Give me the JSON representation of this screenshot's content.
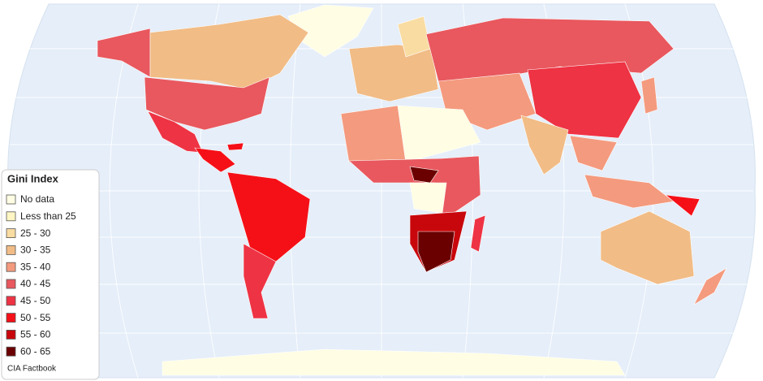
{
  "legend": {
    "title": "Gini Index",
    "items": [
      {
        "label": "No data",
        "color": "#fffde3"
      },
      {
        "label": "Less than 25",
        "color": "#fff6c4"
      },
      {
        "label": "25 - 30",
        "color": "#f9dca2"
      },
      {
        "label": "30 - 35",
        "color": "#f1bc86"
      },
      {
        "label": "35 - 40",
        "color": "#f49a7e"
      },
      {
        "label": "40 - 45",
        "color": "#e8585e"
      },
      {
        "label": "45 - 50",
        "color": "#ee3344"
      },
      {
        "label": "50 - 55",
        "color": "#f51018"
      },
      {
        "label": "55 - 60",
        "color": "#c8070c"
      },
      {
        "label": "60 - 65",
        "color": "#6b0000"
      }
    ]
  },
  "source": "CIA Factbook"
}
